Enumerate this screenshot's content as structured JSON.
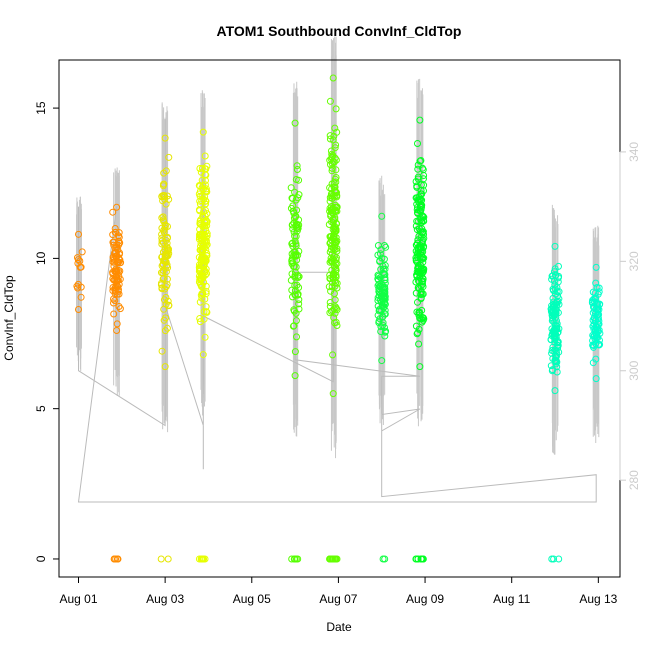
{
  "chart_data": {
    "type": "scatter",
    "title": "ATOM1 Southbound ConvInf_CldTop",
    "xlabel": "Date",
    "ylabel": "ConvInf_CldTop",
    "x_ticks": [
      {
        "label": "Aug 01",
        "day": 1
      },
      {
        "label": "Aug 03",
        "day": 3
      },
      {
        "label": "Aug 05",
        "day": 5
      },
      {
        "label": "Aug 07",
        "day": 7
      },
      {
        "label": "Aug 09",
        "day": 9
      },
      {
        "label": "Aug 11",
        "day": 11
      },
      {
        "label": "Aug 13",
        "day": 13
      }
    ],
    "xlim": [
      0.55,
      13.5
    ],
    "ylim": [
      -0.6,
      16.6
    ],
    "y_ticks": [
      "0",
      "5",
      "10",
      "15"
    ],
    "y2lim": [
      262.3,
      356.8
    ],
    "y2_ticks": [
      "280",
      "300",
      "320",
      "340"
    ],
    "y2_color": "#cccccc",
    "clusters": [
      {
        "day": 1.0,
        "color": "#ff8c00",
        "ymin": 8.3,
        "ymax": 10.8,
        "n": 12,
        "zeros": 0
      },
      {
        "day": 1.88,
        "color": "#ff8c00",
        "ymin": 7.6,
        "ymax": 11.7,
        "n": 90,
        "zeros": 6
      },
      {
        "day": 3.0,
        "color": "#e6e600",
        "ymin": 6.4,
        "ymax": 14.0,
        "n": 90,
        "zeros": 2
      },
      {
        "day": 3.88,
        "color": "#e6ff00",
        "ymin": 6.8,
        "ymax": 14.2,
        "n": 170,
        "zeros": 8
      },
      {
        "day": 6.0,
        "color": "#55ff00",
        "ymin": 6.1,
        "ymax": 14.5,
        "n": 90,
        "zeros": 6
      },
      {
        "day": 6.88,
        "color": "#66ff00",
        "ymin": 5.5,
        "ymax": 16.0,
        "n": 170,
        "zeros": 12
      },
      {
        "day": 8.0,
        "color": "#11ff44",
        "ymin": 6.6,
        "ymax": 11.4,
        "n": 90,
        "zeros": 2
      },
      {
        "day": 8.88,
        "color": "#00ff22",
        "ymin": 6.4,
        "ymax": 14.6,
        "n": 170,
        "zeros": 10
      },
      {
        "day": 12.0,
        "color": "#00ffbb",
        "ymin": 5.6,
        "ymax": 10.4,
        "n": 120,
        "zeros": 3
      },
      {
        "day": 12.95,
        "color": "#00ffcc",
        "ymin": 6.0,
        "ymax": 9.7,
        "n": 80,
        "zeros": 0
      }
    ],
    "secondary_line": [
      {
        "day": 1.0,
        "v": 330
      },
      {
        "day": 1.0,
        "v": 300
      },
      {
        "day": 3.0,
        "v": 290
      },
      {
        "day": 3.0,
        "v": 346
      },
      {
        "day": 3.0,
        "v": 312
      },
      {
        "day": 3.88,
        "v": 290
      },
      {
        "day": 3.88,
        "v": 338
      },
      {
        "day": 3.88,
        "v": 282
      },
      {
        "day": 3.88,
        "v": 310
      },
      {
        "day": 6.88,
        "v": 298
      },
      {
        "day": 6.88,
        "v": 318
      },
      {
        "day": 6.0,
        "v": 318
      },
      {
        "day": 6.0,
        "v": 302
      },
      {
        "day": 8.88,
        "v": 299
      },
      {
        "day": 8.0,
        "v": 299
      },
      {
        "day": 8.0,
        "v": 289
      },
      {
        "day": 8.88,
        "v": 293
      },
      {
        "day": 8.0,
        "v": 292
      },
      {
        "day": 8.0,
        "v": 277
      },
      {
        "day": 12.95,
        "v": 281
      },
      {
        "day": 12.95,
        "v": 276
      },
      {
        "day": 12.0,
        "v": 276
      },
      {
        "day": 1.0,
        "v": 276
      },
      {
        "day": 1.88,
        "v": 330
      }
    ]
  }
}
